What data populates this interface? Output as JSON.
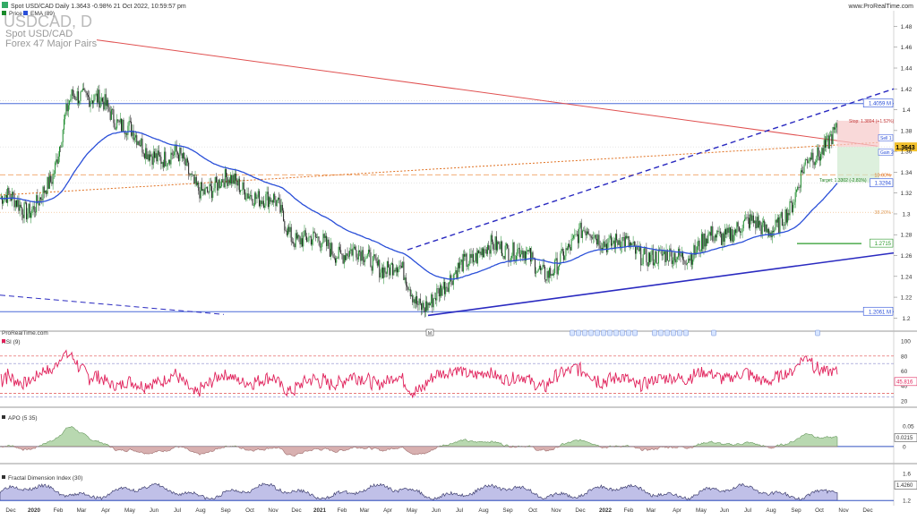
{
  "header": {
    "title": "Spot USD/CAD Daily 1.3643 -0.98% 21 Oct 2022, 10:59:57 pm",
    "site": "www.ProRealTime.com",
    "legend": [
      "Price",
      "EMA (89)"
    ],
    "big_symbol": "USDCAD, D",
    "subtitle1": "Spot USD/CAD",
    "subtitle2": "Forex 47 Major Pairs",
    "brand_small": "ProRealTime.com"
  },
  "colors": {
    "ema": "#2a4fd8",
    "trend": "#2020a0",
    "red_line": "#e05050",
    "orange_dotted": "#e07020",
    "rsi": "#e0205a",
    "apo_pos": "#b8d8b0",
    "apo_neg": "#d8b0b0",
    "fd_fill": "#c0c0e8",
    "up_candle": "#1a8a2a",
    "down_candle": "#222222"
  },
  "chart_data": [
    {
      "type": "candlestick",
      "title": "USDCAD, D",
      "x_ticks": [
        "Dec",
        "2020",
        "Feb",
        "Mar",
        "Apr",
        "May",
        "Jun",
        "Jul",
        "Aug",
        "Sep",
        "Oct",
        "Nov",
        "Dec",
        "2021",
        "Feb",
        "Mar",
        "Apr",
        "May",
        "Jun",
        "Jul",
        "Aug",
        "Sep",
        "Oct",
        "Nov",
        "Dec",
        "2022",
        "Feb",
        "Mar",
        "Apr",
        "May",
        "Jun",
        "Jul",
        "Aug",
        "Sep",
        "Oct",
        "Nov",
        "Dec"
      ],
      "y_ticks": [
        1.2,
        1.22,
        1.24,
        1.26,
        1.28,
        1.3,
        1.32,
        1.34,
        1.36,
        1.38,
        1.4,
        1.42,
        1.44,
        1.46,
        1.48
      ],
      "ylim": [
        1.19,
        1.495
      ],
      "close_by_month": [
        {
          "x": "Dec",
          "close": 1.315
        },
        {
          "x": "2020",
          "close": 1.305
        },
        {
          "x": "Feb",
          "close": 1.325
        },
        {
          "x": "Mar",
          "close": 1.42
        },
        {
          "x": "Apr",
          "close": 1.405
        },
        {
          "x": "May",
          "close": 1.39
        },
        {
          "x": "Jun",
          "close": 1.355
        },
        {
          "x": "Jul",
          "close": 1.36
        },
        {
          "x": "Aug",
          "close": 1.325
        },
        {
          "x": "Sep",
          "close": 1.33
        },
        {
          "x": "Oct",
          "close": 1.325
        },
        {
          "x": "Nov",
          "close": 1.31
        },
        {
          "x": "Dec",
          "close": 1.28
        },
        {
          "x": "2021",
          "close": 1.27
        },
        {
          "x": "Feb",
          "close": 1.265
        },
        {
          "x": "Mar",
          "close": 1.255
        },
        {
          "x": "Apr",
          "close": 1.25
        },
        {
          "x": "May",
          "close": 1.215
        },
        {
          "x": "Jun",
          "close": 1.225
        },
        {
          "x": "Jul",
          "close": 1.26
        },
        {
          "x": "Aug",
          "close": 1.265
        },
        {
          "x": "Sep",
          "close": 1.27
        },
        {
          "x": "Oct",
          "close": 1.24
        },
        {
          "x": "Nov",
          "close": 1.265
        },
        {
          "x": "Dec",
          "close": 1.285
        },
        {
          "x": "2022",
          "close": 1.27
        },
        {
          "x": "Feb",
          "close": 1.265
        },
        {
          "x": "Mar",
          "close": 1.255
        },
        {
          "x": "Apr",
          "close": 1.265
        },
        {
          "x": "May",
          "close": 1.275
        },
        {
          "x": "Jun",
          "close": 1.29
        },
        {
          "x": "Jul",
          "close": 1.285
        },
        {
          "x": "Aug",
          "close": 1.3
        },
        {
          "x": "Sep",
          "close": 1.36
        },
        {
          "x": "Oct",
          "close": 1.375
        }
      ],
      "series": [
        {
          "name": "Price"
        },
        {
          "name": "EMA (89)"
        }
      ],
      "levels": [
        {
          "label": "1.4059 M",
          "value": 1.4059
        },
        {
          "label": "1.2061 M",
          "value": 1.2061
        },
        {
          "label": "1.2715",
          "value": 1.2715
        },
        {
          "label": "1.3294",
          "value": 1.3294
        },
        {
          "label": "10.00%",
          "value": 1.3375
        },
        {
          "label": "38.20%",
          "value": 1.3015
        }
      ],
      "trade_box": {
        "stop": "Stop: 1.3894 (+1.52%)",
        "target": "Target: 1.3302 (-2.81%)",
        "sell": "Sell 1",
        "gain": "Gain 2",
        "stop_level": 1.3894,
        "entry_level": 1.3643,
        "target_level": 1.3302
      },
      "last_price": "1.3643"
    },
    {
      "type": "line",
      "title": "RSI (9)",
      "y_ticks": [
        20,
        40,
        60,
        80,
        100
      ],
      "ylim": [
        15,
        105
      ],
      "last_value": "45.816",
      "levels": [
        30,
        50,
        70
      ]
    },
    {
      "type": "area",
      "title": "APO (5 35)",
      "y_ticks": [
        "0.05",
        "0.0215",
        "0"
      ],
      "ylim": [
        -0.035,
        0.08
      ],
      "last_value": "0.0215"
    },
    {
      "type": "area",
      "title": "Fractal Dimension Index (30)",
      "y_ticks": [
        "1.6",
        "1.4260",
        "1.2"
      ],
      "ylim": [
        1.15,
        1.65
      ],
      "last_value": "1.4260"
    }
  ]
}
